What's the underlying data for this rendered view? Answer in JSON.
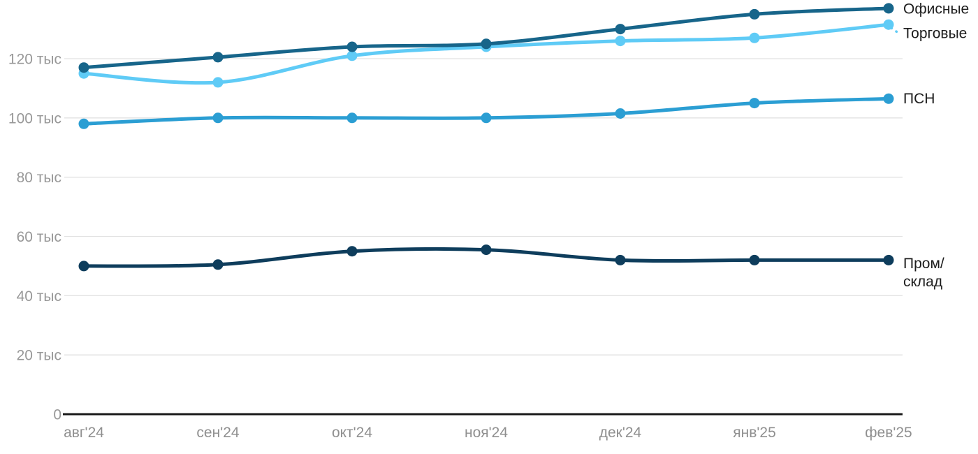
{
  "chart_data": {
    "type": "line",
    "title": "",
    "xlabel": "",
    "ylabel": "",
    "unit": "тыс",
    "categories": [
      "авг'24",
      "сен'24",
      "окт'24",
      "ноя'24",
      "дек'24",
      "янв'25",
      "фев'25"
    ],
    "y_ticks": [
      0,
      20,
      40,
      60,
      80,
      100,
      120
    ],
    "y_tick_labels": [
      "0",
      "20 тыс",
      "40 тыс",
      "60 тыс",
      "80 тыс",
      "100 тыс",
      "120 тыс"
    ],
    "ylim": [
      0,
      139
    ],
    "grid": true,
    "legend_position": "line-end-right",
    "series": [
      {
        "id": "offices",
        "name": "Офисные",
        "color": "#17658a",
        "values": [
          117,
          120.5,
          124,
          125,
          130,
          135,
          137
        ],
        "label_lines": [
          "Офисные"
        ],
        "label_dy": 1,
        "leader": false
      },
      {
        "id": "retail",
        "name": "Торговые",
        "color": "#5fcbf6",
        "values": [
          115,
          112,
          121,
          124,
          126,
          127,
          131.5
        ],
        "label_lines": [
          "Торговые"
        ],
        "label_dy": 13,
        "leader": true
      },
      {
        "id": "psn",
        "name": "ПСН",
        "color": "#2b9ed3",
        "values": [
          98,
          100,
          100,
          100,
          101.5,
          105,
          106.5
        ],
        "label_lines": [
          "ПСН"
        ],
        "label_dy": 0,
        "leader": false
      },
      {
        "id": "prom-sklad",
        "name": "Пром/склад",
        "color": "#0e3d5c",
        "values": [
          50,
          50.5,
          55,
          55.5,
          52,
          52,
          52
        ],
        "label_lines": [
          "Пром/",
          "склад"
        ],
        "label_dy": 5,
        "leader": false
      }
    ]
  },
  "colors": {
    "background": "#ffffff",
    "gridline": "#e2e2e2",
    "axis_line": "#1a1a1a",
    "y_tick_text": "#989898",
    "x_tick_text": "#8f8f8f",
    "series_label_text": "#1d1d1d"
  }
}
